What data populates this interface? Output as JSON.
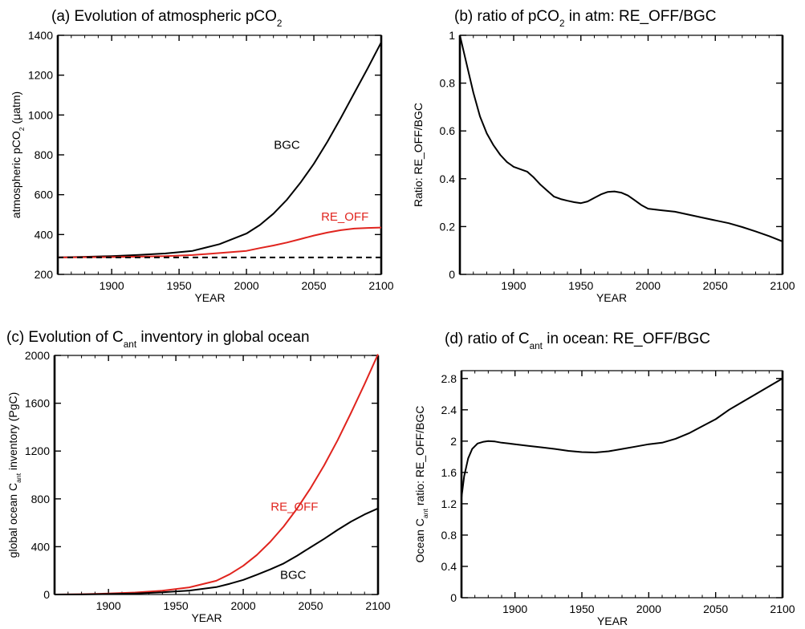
{
  "chart_data": [
    {
      "id": "a",
      "type": "line",
      "title_parts": [
        "(a) Evolution of atmospheric pCO",
        "2",
        ""
      ],
      "xlabel": "YEAR",
      "ylabel_parts": [
        "atmospheric pCO",
        "2",
        " (μatm)"
      ],
      "xlim": [
        1860,
        2100
      ],
      "ylim": [
        200,
        1400
      ],
      "xticks": [
        1900,
        1950,
        2000,
        2050,
        2100
      ],
      "yticks": [
        200,
        400,
        600,
        800,
        1000,
        1200,
        1400
      ],
      "series": [
        {
          "name": "BGC",
          "color": "#000000",
          "dash": "",
          "x": [
            1860,
            1880,
            1900,
            1920,
            1940,
            1960,
            1980,
            2000,
            2010,
            2020,
            2030,
            2040,
            2050,
            2060,
            2070,
            2080,
            2090,
            2100
          ],
          "y": [
            285,
            288,
            292,
            298,
            305,
            318,
            352,
            405,
            448,
            505,
            575,
            660,
            755,
            865,
            985,
            1110,
            1235,
            1365
          ]
        },
        {
          "name": "RE_OFF",
          "color": "#e0241e",
          "dash": "",
          "x": [
            1860,
            1880,
            1900,
            1920,
            1940,
            1960,
            1980,
            2000,
            2010,
            2020,
            2030,
            2040,
            2050,
            2060,
            2070,
            2080,
            2090,
            2100
          ],
          "y": [
            285,
            286,
            287,
            289,
            292,
            297,
            307,
            318,
            332,
            345,
            360,
            377,
            395,
            410,
            422,
            430,
            433,
            435
          ]
        },
        {
          "name": "",
          "color": "#000000",
          "dash": "7,5",
          "x": [
            1860,
            2100
          ],
          "y": [
            285,
            285
          ]
        }
      ],
      "annotations": [
        {
          "text": "BGC",
          "color": "#000000",
          "x": 2030,
          "y": 830
        },
        {
          "text": "RE_OFF",
          "color": "#e0241e",
          "x": 2073,
          "y": 470
        }
      ]
    },
    {
      "id": "b",
      "type": "line",
      "title_parts": [
        "(b) ratio of pCO",
        "2",
        " in atm: RE_OFF/BGC"
      ],
      "xlabel": "YEAR",
      "ylabel_parts": [
        "Ratio: RE_OFF/BGC",
        "",
        ""
      ],
      "xlim": [
        1860,
        2100
      ],
      "ylim": [
        0,
        1
      ],
      "xticks": [
        1900,
        1950,
        2000,
        2050,
        2100
      ],
      "yticks": [
        0,
        0.2,
        0.4,
        0.6,
        0.8,
        1
      ],
      "series": [
        {
          "name": "",
          "color": "#000000",
          "dash": "",
          "x": [
            1860,
            1865,
            1870,
            1875,
            1880,
            1885,
            1890,
            1895,
            1900,
            1905,
            1910,
            1915,
            1920,
            1925,
            1930,
            1935,
            1940,
            1945,
            1950,
            1955,
            1960,
            1965,
            1970,
            1975,
            1980,
            1985,
            1990,
            1995,
            2000,
            2010,
            2020,
            2030,
            2040,
            2050,
            2060,
            2070,
            2080,
            2090,
            2100
          ],
          "y": [
            1.0,
            0.88,
            0.76,
            0.66,
            0.59,
            0.54,
            0.5,
            0.47,
            0.45,
            0.44,
            0.43,
            0.405,
            0.375,
            0.35,
            0.325,
            0.315,
            0.308,
            0.302,
            0.298,
            0.305,
            0.32,
            0.335,
            0.345,
            0.347,
            0.342,
            0.33,
            0.31,
            0.29,
            0.275,
            0.268,
            0.262,
            0.25,
            0.238,
            0.226,
            0.214,
            0.198,
            0.18,
            0.16,
            0.138
          ]
        }
      ],
      "annotations": []
    },
    {
      "id": "c",
      "type": "line",
      "title_parts": [
        "(c) Evolution of C",
        "ant",
        " inventory in global ocean"
      ],
      "xlabel": "YEAR",
      "ylabel_parts": [
        "global ocean C",
        "ant",
        " inventory (PgC)"
      ],
      "xlim": [
        1860,
        2100
      ],
      "ylim": [
        0,
        2000
      ],
      "xticks": [
        1900,
        1950,
        2000,
        2050,
        2100
      ],
      "yticks": [
        0,
        400,
        800,
        1200,
        1600,
        2000
      ],
      "series": [
        {
          "name": "RE_OFF",
          "color": "#e0241e",
          "dash": "",
          "x": [
            1860,
            1880,
            1900,
            1920,
            1940,
            1960,
            1980,
            1990,
            2000,
            2010,
            2020,
            2030,
            2040,
            2050,
            2060,
            2070,
            2080,
            2090,
            2100
          ],
          "y": [
            0,
            3,
            8,
            17,
            32,
            60,
            115,
            170,
            240,
            330,
            440,
            570,
            720,
            890,
            1080,
            1290,
            1520,
            1760,
            2010
          ]
        },
        {
          "name": "BGC",
          "color": "#000000",
          "dash": "",
          "x": [
            1860,
            1880,
            1900,
            1920,
            1940,
            1960,
            1980,
            1990,
            2000,
            2010,
            2020,
            2030,
            2040,
            2050,
            2060,
            2070,
            2080,
            2090,
            2100
          ],
          "y": [
            0,
            1,
            4,
            9,
            18,
            33,
            62,
            90,
            122,
            165,
            210,
            260,
            325,
            395,
            465,
            540,
            610,
            670,
            720
          ]
        }
      ],
      "annotations": [
        {
          "text": "RE_OFF",
          "color": "#e0241e",
          "x": 2038,
          "y": 700
        },
        {
          "text": "BGC",
          "color": "#000000",
          "x": 2037,
          "y": 130
        }
      ]
    },
    {
      "id": "d",
      "type": "line",
      "title_parts": [
        "(d) ratio of C",
        "ant",
        " in ocean: RE_OFF/BGC"
      ],
      "xlabel": "YEAR",
      "ylabel_parts": [
        "Ocean C",
        "ant",
        " ratio: RE_OFF/BGC"
      ],
      "xlim": [
        1860,
        2100
      ],
      "ylim": [
        0,
        2.9
      ],
      "xticks": [
        1900,
        1950,
        2000,
        2050,
        2100
      ],
      "yticks": [
        0,
        0.4,
        0.8,
        1.2,
        1.6,
        2,
        2.4,
        2.8
      ],
      "series": [
        {
          "name": "",
          "color": "#000000",
          "dash": "",
          "x": [
            1860,
            1862,
            1865,
            1868,
            1872,
            1876,
            1880,
            1885,
            1890,
            1900,
            1910,
            1920,
            1930,
            1940,
            1950,
            1960,
            1970,
            1980,
            1990,
            2000,
            2010,
            2020,
            2030,
            2040,
            2050,
            2060,
            2070,
            2080,
            2090,
            2100
          ],
          "y": [
            1.28,
            1.55,
            1.78,
            1.9,
            1.97,
            1.99,
            2.0,
            1.995,
            1.98,
            1.96,
            1.94,
            1.92,
            1.9,
            1.875,
            1.86,
            1.855,
            1.87,
            1.9,
            1.93,
            1.96,
            1.98,
            2.03,
            2.1,
            2.19,
            2.28,
            2.4,
            2.5,
            2.6,
            2.7,
            2.8
          ]
        }
      ],
      "annotations": []
    }
  ]
}
